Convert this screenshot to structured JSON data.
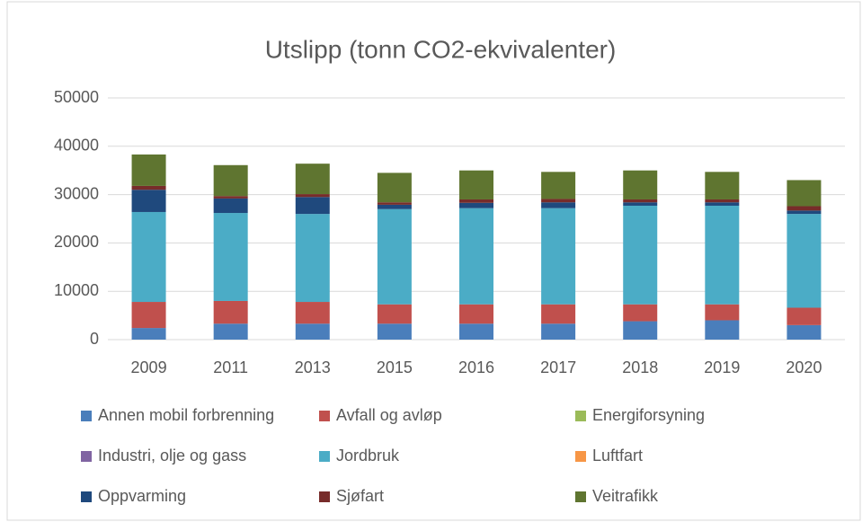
{
  "chart_data": {
    "type": "stacked_bar",
    "title": "Utslipp (tonn CO2-ekvivalenter)",
    "categories": [
      "2009",
      "2011",
      "2013",
      "2015",
      "2016",
      "2017",
      "2018",
      "2019",
      "2020"
    ],
    "series": [
      {
        "name": "Annen mobil forbrenning",
        "color": "#4a7ebb",
        "values": [
          2400,
          3300,
          3300,
          3300,
          3300,
          3300,
          3800,
          4000,
          3000
        ]
      },
      {
        "name": "Avfall og avløp",
        "color": "#c0504d",
        "values": [
          5400,
          4700,
          4500,
          4000,
          4000,
          4000,
          3500,
          3300,
          3600
        ]
      },
      {
        "name": "Energiforsyning",
        "color": "#9bbb59",
        "values": [
          0,
          0,
          0,
          0,
          0,
          0,
          0,
          0,
          0
        ]
      },
      {
        "name": "Industri, olje og gass",
        "color": "#8064a2",
        "values": [
          0,
          0,
          0,
          0,
          0,
          0,
          0,
          0,
          0
        ]
      },
      {
        "name": "Jordbruk",
        "color": "#4bacc6",
        "values": [
          18600,
          18200,
          18200,
          19700,
          19900,
          19900,
          20400,
          20400,
          19400
        ]
      },
      {
        "name": "Luftfart",
        "color": "#f79646",
        "values": [
          0,
          0,
          0,
          0,
          0,
          0,
          0,
          0,
          0
        ]
      },
      {
        "name": "Oppvarming",
        "color": "#1f497d",
        "values": [
          4600,
          3000,
          3500,
          900,
          1100,
          1200,
          700,
          700,
          700
        ]
      },
      {
        "name": "Sjøfart",
        "color": "#772c2a",
        "values": [
          800,
          500,
          600,
          500,
          700,
          700,
          600,
          600,
          900
        ]
      },
      {
        "name": "Veitrafikk",
        "color": "#5f7530",
        "values": [
          6500,
          6400,
          6300,
          6100,
          6000,
          5600,
          6000,
          5700,
          5400
        ]
      }
    ],
    "ylim": [
      0,
      50000
    ],
    "yticks": [
      0,
      10000,
      20000,
      30000,
      40000,
      50000
    ],
    "grid": true
  }
}
